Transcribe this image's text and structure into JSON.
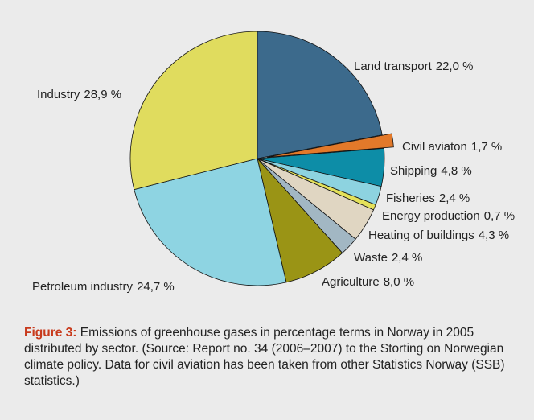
{
  "chart_data": {
    "type": "pie",
    "categories": [
      "Land transport",
      "Civil aviaton",
      "Shipping",
      "Fisheries",
      "Energy production",
      "Heating of buildings",
      "Waste",
      "Agriculture",
      "Petroleum industry",
      "Industry"
    ],
    "values": [
      22.0,
      1.7,
      4.8,
      2.4,
      0.7,
      4.3,
      2.4,
      8.0,
      24.7,
      28.9
    ],
    "value_labels": [
      "22,0 %",
      "1,7 %",
      "4,8 %",
      "2,4 %",
      "0,7 %",
      "4,3 %",
      "2,4 %",
      "8,0 %",
      "24,7 %",
      "28,9 %"
    ],
    "colors": [
      "#3c6a8c",
      "#e2792a",
      "#0d8da7",
      "#8dd3e0",
      "#e4e15a",
      "#e0d6c2",
      "#a2b7c3",
      "#9a9415",
      "#8ed4e2",
      "#e0dc5e"
    ],
    "exploded": [
      "Civil aviaton"
    ]
  },
  "caption": {
    "label": "Figure 3:",
    "text": "Emissions of greenhouse gases in percentage terms in Norway in 2005 distributed by sector. (Source: Report no. 34 (2006–2007) to the Storting on Norwegian climate policy.  Data for civil aviation has been taken from other Statistics Norway (SSB) statistics.)"
  }
}
